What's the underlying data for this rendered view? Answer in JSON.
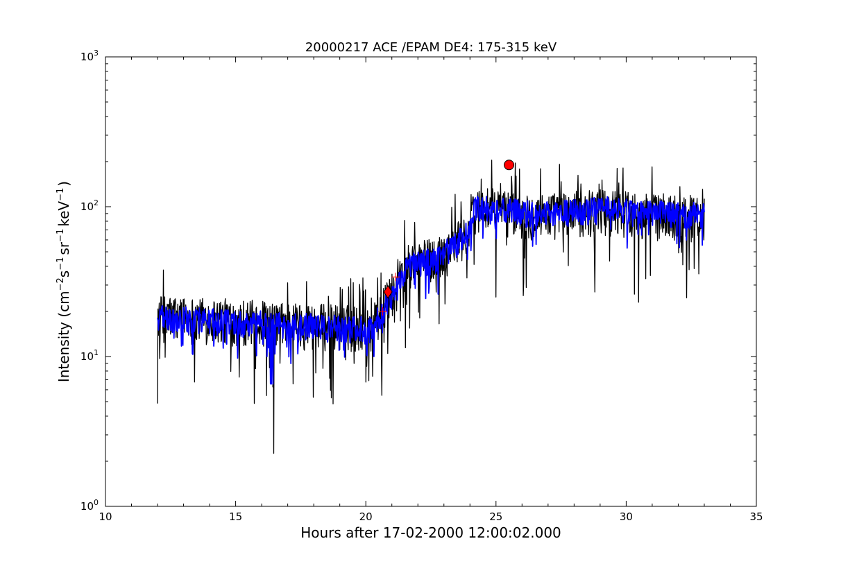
{
  "chart_data": {
    "type": "line",
    "title": "20000217 ACE /EPAM DE4: 175-315 keV",
    "xlabel": "Hours after 17-02-2000 12:00:02.000",
    "ylabel": {
      "prefix": "Intensity (cm",
      "sup1": "−2",
      "mid1": "s",
      "sup2": "−1",
      "mid2": "sr",
      "sup3": "−1",
      "mid3": "keV",
      "sup4": "−1",
      "suffix": ")"
    },
    "xlim": [
      10,
      35
    ],
    "ylim": [
      1,
      1000
    ],
    "yscale": "log",
    "grid": false,
    "x_ticks": [
      {
        "value": 10,
        "label": "10"
      },
      {
        "value": 15,
        "label": "15"
      },
      {
        "value": 20,
        "label": "20"
      },
      {
        "value": 25,
        "label": "25"
      },
      {
        "value": 30,
        "label": "30"
      },
      {
        "value": 35,
        "label": "35"
      }
    ],
    "y_ticks": [
      {
        "value": 1,
        "base": "10",
        "exp": "0"
      },
      {
        "value": 10,
        "base": "10",
        "exp": "1"
      },
      {
        "value": 100,
        "base": "10",
        "exp": "2"
      },
      {
        "value": 1000,
        "base": "10",
        "exp": "3"
      }
    ],
    "series": [
      {
        "color": "#000000",
        "x_range": [
          12.0,
          33.0
        ],
        "profile": [
          [
            12.0,
            19
          ],
          [
            20.2,
            16
          ],
          [
            20.6,
            20
          ],
          [
            21.2,
            30
          ],
          [
            21.6,
            42
          ],
          [
            22.6,
            46
          ],
          [
            23.3,
            55
          ],
          [
            24.0,
            72
          ],
          [
            24.2,
            100
          ],
          [
            25.4,
            96
          ],
          [
            26.5,
            90
          ],
          [
            28.0,
            94
          ],
          [
            29.2,
            98
          ],
          [
            30.5,
            92
          ],
          [
            33.0,
            88
          ]
        ]
      },
      {
        "color": "#0000ff",
        "x_range": [
          12.0,
          33.0
        ],
        "profile": [
          [
            12.0,
            18
          ],
          [
            20.2,
            15
          ],
          [
            20.6,
            19
          ],
          [
            21.2,
            29
          ],
          [
            21.6,
            40
          ],
          [
            22.6,
            44
          ],
          [
            23.3,
            52
          ],
          [
            24.0,
            68
          ],
          [
            24.2,
            97
          ],
          [
            25.4,
            94
          ],
          [
            26.5,
            89
          ],
          [
            28.0,
            92
          ],
          [
            29.2,
            96
          ],
          [
            30.5,
            91
          ],
          [
            33.0,
            87
          ]
        ]
      }
    ],
    "markers": [
      {
        "shape": "diamond",
        "x": 20.85,
        "y": 27,
        "color": "#ff0000"
      },
      {
        "shape": "circle",
        "x": 25.5,
        "y": 190,
        "color": "#ff0000"
      }
    ],
    "minor_markers": [
      {
        "shape": "plus",
        "x": 20.65,
        "y": 20,
        "color": "#ff0000"
      },
      {
        "shape": "plus",
        "x": 21.15,
        "y": 34,
        "color": "#ff0000"
      }
    ]
  }
}
